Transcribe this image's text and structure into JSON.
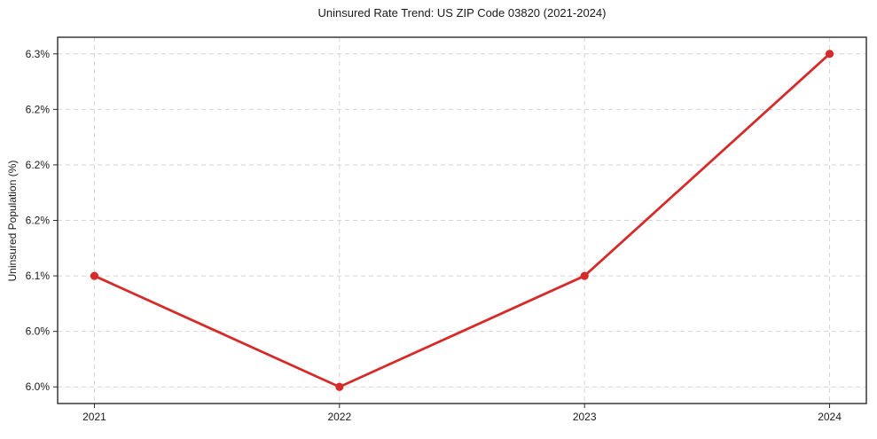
{
  "chart_data": {
    "type": "line",
    "title": "Uninsured Rate Trend: US ZIP Code 03820 (2021-2024)",
    "xlabel": "",
    "ylabel": "Uninsured Population (%)",
    "x": [
      2021,
      2022,
      2023,
      2024
    ],
    "x_tick_labels": [
      "2021",
      "2022",
      "2023",
      "2024"
    ],
    "series": [
      {
        "name": "Uninsured Rate",
        "values": [
          6.1,
          6.0,
          6.1,
          6.3
        ]
      }
    ],
    "y_ticks": [
      6.0,
      6.05,
      6.1,
      6.15,
      6.2,
      6.25,
      6.3
    ],
    "y_tick_labels": [
      "6.0%",
      "6.0%",
      "6.1%",
      "6.2%",
      "6.2%",
      "6.2%",
      "6.3%"
    ],
    "xlim": [
      2020.85,
      2024.15
    ],
    "ylim": [
      5.985,
      6.315
    ],
    "grid": true,
    "legend": "none",
    "colors": {
      "line": "#d62b2b",
      "marker": "#d62b2b",
      "grid": "#d4d4d4",
      "axis_border": "#2b2b2b",
      "text": "#1a1a1a",
      "background": "#ffffff"
    }
  }
}
